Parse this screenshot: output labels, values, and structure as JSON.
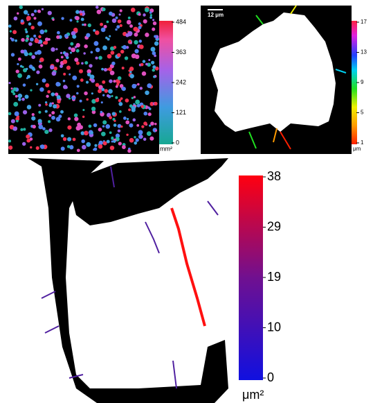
{
  "panels": [
    {
      "colorbar": {
        "ticks": [
          484,
          363,
          242,
          121,
          0
        ],
        "unit": "mm²"
      }
    },
    {
      "scale_bar": "12 μm",
      "colorbar": {
        "ticks": [
          17,
          13,
          9,
          5,
          1
        ],
        "unit": "μm"
      }
    },
    {
      "colorbar": {
        "ticks": [
          38,
          29,
          19,
          10,
          0
        ],
        "unit": "μm²"
      }
    }
  ]
}
